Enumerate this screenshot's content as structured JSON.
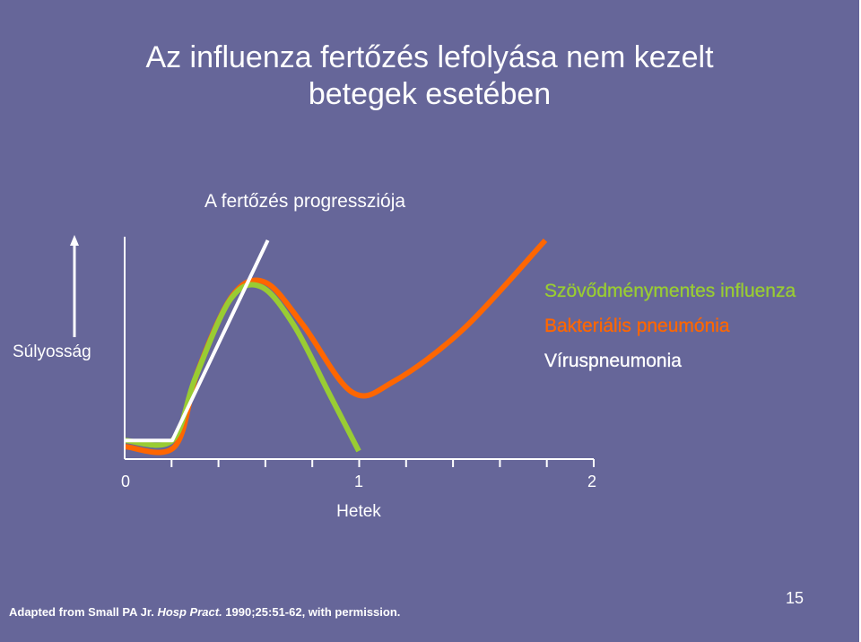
{
  "slide": {
    "title_line1": "Az influenza fertőzés lefolyása nem kezelt",
    "title_line2": "betegek esetében",
    "slide_number": "15"
  },
  "citation": {
    "before": "Adapted from Small PA Jr.  ",
    "journal": "Hosp Pract.",
    "after": "  1990;25:51-62, with permission."
  },
  "chart_data": {
    "type": "line",
    "title": "A fertőzés progressziója",
    "xlabel": "Hetek",
    "ylabel": "Súlyosság",
    "x_ticks": [
      "0",
      "1",
      "2"
    ],
    "xlim": [
      0,
      2
    ],
    "colors": {
      "Szövődménymentes influenza": "#99cc33",
      "Bakteriális pneumónia": "#ff6600",
      "Víruspneumonia": "#ffffff",
      "background": "#666699"
    },
    "series": [
      {
        "name": "Szövődménymentes influenza",
        "color": "#99cc33",
        "points": [
          [
            0,
            0.05
          ],
          [
            0.2,
            0.05
          ],
          [
            0.3,
            0.35
          ],
          [
            0.45,
            0.72
          ],
          [
            0.58,
            0.78
          ],
          [
            0.72,
            0.6
          ],
          [
            0.87,
            0.28
          ],
          [
            1.0,
            0.0
          ]
        ]
      },
      {
        "name": "Bakteriális pneumónia",
        "color": "#ff6600",
        "points": [
          [
            0,
            0.02
          ],
          [
            0.21,
            0.02
          ],
          [
            0.31,
            0.38
          ],
          [
            0.46,
            0.74
          ],
          [
            0.6,
            0.8
          ],
          [
            0.76,
            0.6
          ],
          [
            0.97,
            0.28
          ],
          [
            1.15,
            0.33
          ],
          [
            1.45,
            0.58
          ],
          [
            1.8,
            1.0
          ]
        ]
      },
      {
        "name": "Víruspneumonia",
        "color": "#ffffff",
        "points": [
          [
            0,
            0.05
          ],
          [
            0.2,
            0.05
          ],
          [
            0.61,
            1.0
          ]
        ]
      }
    ]
  }
}
